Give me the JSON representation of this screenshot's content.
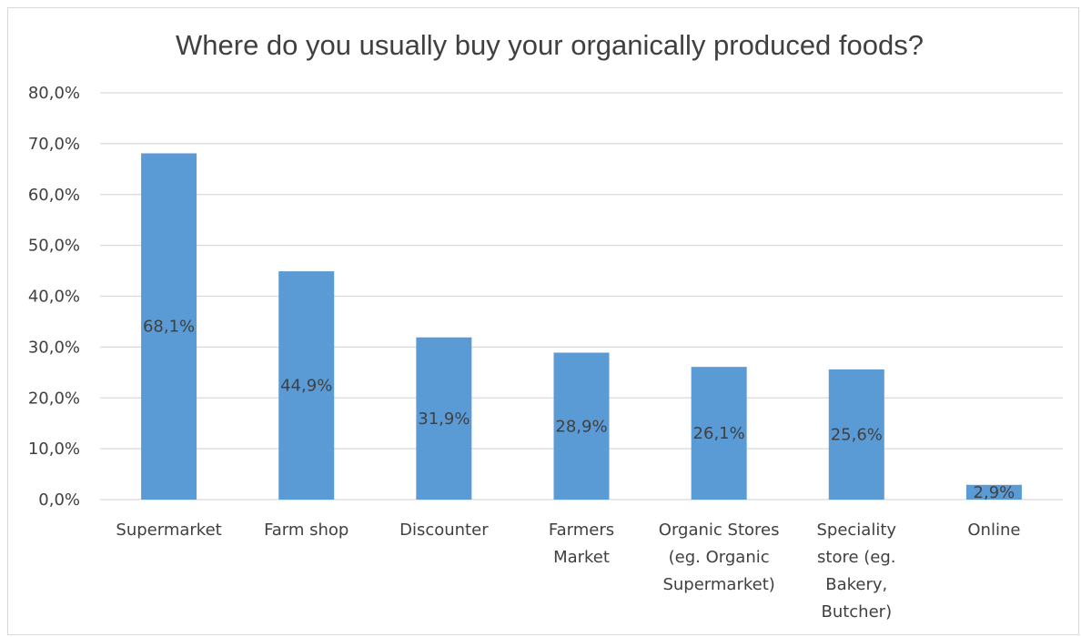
{
  "chart_data": {
    "type": "bar",
    "title": "Where do you usually buy your organically produced foods?",
    "categories": [
      [
        "Supermarket"
      ],
      [
        "Farm shop"
      ],
      [
        "Discounter"
      ],
      [
        "Farmers",
        "Market"
      ],
      [
        "Organic Stores",
        "(eg. Organic",
        "Supermarket)"
      ],
      [
        "Speciality",
        "store (eg.",
        "Bakery,",
        "Butcher)"
      ],
      [
        "Online"
      ]
    ],
    "values": [
      68.1,
      44.9,
      31.9,
      28.9,
      26.1,
      25.6,
      2.9
    ],
    "data_labels": [
      "68,1%",
      "44,9%",
      "31,9%",
      "28,9%",
      "26,1%",
      "25,6%",
      "2,9%"
    ],
    "ylim": [
      0,
      80
    ],
    "yticks": [
      0,
      10,
      20,
      30,
      40,
      50,
      60,
      70,
      80
    ],
    "ytick_labels": [
      "0,0%",
      "10,0%",
      "20,0%",
      "30,0%",
      "40,0%",
      "50,0%",
      "60,0%",
      "70,0%",
      "80,0%"
    ],
    "xlabel": "",
    "ylabel": "",
    "grid": true,
    "legend": "none",
    "bar_color": "#5b9bd5",
    "grid_color": "#d9d9d9",
    "text_color": "#404040"
  }
}
